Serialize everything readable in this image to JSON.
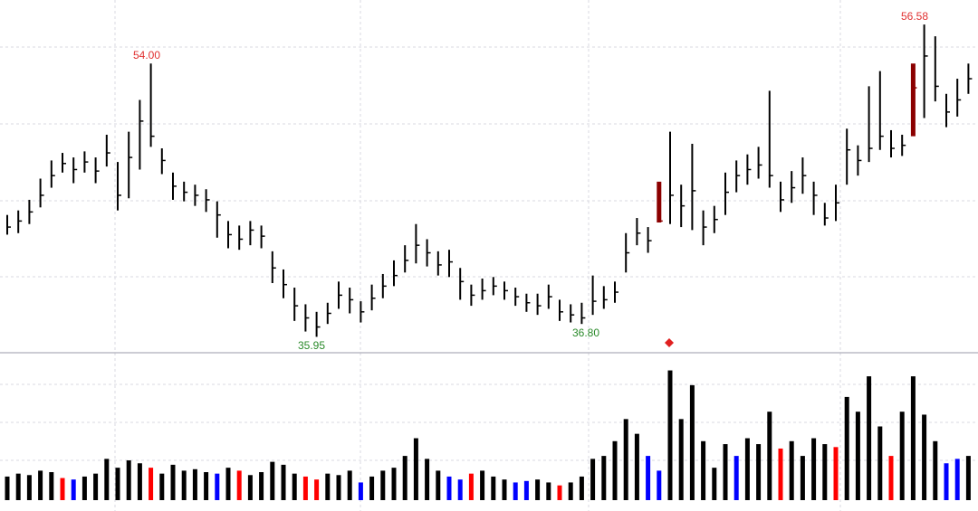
{
  "chart_data": {
    "type": "ohlc",
    "ylim": [
      34.9,
      58.2
    ],
    "high": [
      44.0,
      44.3,
      45.0,
      46.4,
      47.6,
      48.1,
      47.8,
      48.2,
      47.8,
      49.3,
      47.5,
      49.5,
      51.6,
      54.0,
      48.4,
      46.8,
      46.2,
      46.0,
      45.7,
      44.9,
      43.6,
      43.3,
      43.6,
      43.3,
      41.6,
      40.4,
      39.2,
      38.1,
      37.6,
      38.2,
      39.6,
      39.2,
      38.3,
      39.4,
      40.1,
      41.0,
      42.0,
      43.4,
      42.4,
      41.6,
      41.7,
      40.5,
      39.4,
      39.8,
      39.9,
      39.6,
      39.2,
      38.8,
      38.8,
      39.4,
      38.4,
      38.1,
      38.2,
      40.0,
      39.3,
      39.6,
      42.8,
      43.8,
      43.2,
      46.2,
      49.5,
      46.0,
      48.7,
      44.3,
      44.6,
      46.8,
      47.6,
      48.0,
      48.5,
      52.2,
      46.2,
      46.9,
      47.8,
      46.2,
      44.8,
      46.0,
      49.7,
      48.6,
      52.5,
      53.5,
      49.6,
      49.3,
      54.0,
      56.58,
      55.8,
      52.0,
      53.0,
      54.0
    ],
    "low": [
      42.7,
      42.8,
      43.4,
      44.5,
      45.8,
      46.8,
      46.1,
      46.8,
      46.1,
      47.2,
      44.3,
      45.1,
      47.0,
      48.5,
      46.7,
      45.0,
      44.9,
      44.6,
      44.2,
      42.5,
      41.8,
      41.7,
      42.0,
      41.8,
      39.5,
      38.5,
      37.0,
      36.3,
      35.95,
      36.8,
      37.8,
      37.5,
      36.9,
      37.7,
      38.5,
      39.3,
      40.2,
      40.8,
      40.6,
      40.0,
      39.9,
      38.4,
      38.0,
      38.4,
      38.7,
      38.4,
      38.0,
      37.6,
      37.4,
      37.8,
      37.0,
      36.9,
      36.8,
      37.4,
      37.8,
      38.2,
      40.2,
      42.0,
      41.5,
      43.5,
      43.4,
      43.2,
      43.0,
      42.0,
      42.8,
      44.0,
      45.5,
      46.0,
      46.4,
      45.8,
      44.2,
      44.8,
      45.4,
      44.0,
      43.3,
      43.6,
      46.0,
      46.6,
      47.5,
      48.3,
      47.8,
      47.9,
      49.2,
      50.4,
      51.5,
      49.8,
      50.5,
      52.0
    ],
    "close": [
      43.2,
      43.6,
      44.2,
      45.3,
      46.6,
      47.4,
      47.0,
      47.5,
      46.9,
      48.1,
      45.3,
      47.8,
      50.2,
      49.2,
      47.6,
      45.9,
      45.5,
      45.3,
      45.0,
      44.0,
      42.7,
      42.4,
      43.0,
      42.6,
      40.5,
      39.4,
      38.0,
      37.2,
      36.6,
      37.5,
      38.7,
      38.4,
      37.6,
      38.5,
      39.3,
      40.0,
      41.0,
      42.0,
      41.5,
      40.7,
      40.9,
      39.6,
      38.7,
      39.0,
      39.3,
      39.0,
      38.6,
      38.2,
      38.0,
      38.6,
      37.6,
      37.4,
      37.2,
      38.3,
      38.4,
      38.9,
      41.5,
      42.8,
      42.3,
      43.6,
      45.3,
      44.6,
      45.6,
      43.2,
      43.7,
      45.5,
      46.6,
      47.0,
      47.3,
      46.6,
      45.0,
      45.8,
      46.6,
      45.3,
      43.8,
      44.8,
      48.3,
      47.6,
      48.4,
      49.2,
      48.4,
      48.6,
      52.4,
      54.5,
      52.5,
      50.8,
      51.6,
      53.0
    ],
    "colors": [
      "black",
      "black",
      "black",
      "black",
      "black",
      "black",
      "black",
      "black",
      "black",
      "black",
      "black",
      "black",
      "black",
      "black",
      "black",
      "black",
      "black",
      "black",
      "black",
      "black",
      "black",
      "black",
      "black",
      "black",
      "black",
      "black",
      "black",
      "black",
      "black",
      "black",
      "black",
      "black",
      "black",
      "black",
      "black",
      "black",
      "black",
      "black",
      "black",
      "black",
      "black",
      "black",
      "black",
      "black",
      "black",
      "black",
      "black",
      "black",
      "black",
      "black",
      "black",
      "black",
      "black",
      "black",
      "black",
      "black",
      "black",
      "black",
      "black",
      "darkred",
      "black",
      "black",
      "black",
      "black",
      "black",
      "black",
      "black",
      "black",
      "black",
      "black",
      "black",
      "black",
      "black",
      "black",
      "black",
      "black",
      "black",
      "black",
      "black",
      "black",
      "black",
      "black",
      "darkred",
      "black",
      "black",
      "black",
      "black",
      "black"
    ],
    "annotations": [
      "54.00",
      "35.95",
      "36.80",
      "56.58"
    ],
    "annotation_colors": [
      "#e03030",
      "#2a8a2a",
      "#2a8a2a",
      "#e03030"
    ],
    "volume": {
      "vlim": [
        0,
        100
      ],
      "values": [
        16,
        18,
        17,
        20,
        19,
        15,
        14,
        16,
        18,
        28,
        22,
        27,
        25,
        22,
        18,
        24,
        20,
        21,
        19,
        18,
        22,
        20,
        17,
        19,
        26,
        24,
        18,
        16,
        14,
        18,
        17,
        20,
        12,
        16,
        20,
        22,
        30,
        42,
        28,
        20,
        16,
        14,
        18,
        20,
        16,
        14,
        12,
        13,
        14,
        12,
        10,
        12,
        16,
        28,
        30,
        40,
        55,
        45,
        30,
        20,
        88,
        55,
        78,
        40,
        22,
        38,
        30,
        42,
        38,
        60,
        35,
        40,
        30,
        42,
        38,
        36,
        70,
        60,
        84,
        50,
        30,
        60,
        84,
        58,
        40,
        25,
        28,
        30
      ],
      "colors": [
        "black",
        "black",
        "black",
        "black",
        "black",
        "red",
        "blue",
        "black",
        "black",
        "black",
        "black",
        "black",
        "black",
        "red",
        "black",
        "black",
        "black",
        "black",
        "black",
        "blue",
        "black",
        "red",
        "black",
        "black",
        "black",
        "black",
        "black",
        "red",
        "red",
        "black",
        "black",
        "black",
        "blue",
        "black",
        "black",
        "black",
        "black",
        "black",
        "black",
        "black",
        "blue",
        "blue",
        "red",
        "black",
        "black",
        "black",
        "blue",
        "blue",
        "black",
        "black",
        "red",
        "black",
        "black",
        "black",
        "black",
        "black",
        "black",
        "black",
        "blue",
        "blue",
        "black",
        "black",
        "black",
        "black",
        "black",
        "black",
        "blue",
        "black",
        "black",
        "black",
        "red",
        "black",
        "black",
        "black",
        "black",
        "red",
        "black",
        "black",
        "black",
        "black",
        "red",
        "black",
        "black",
        "black",
        "black",
        "blue",
        "blue",
        "black"
      ]
    }
  }
}
